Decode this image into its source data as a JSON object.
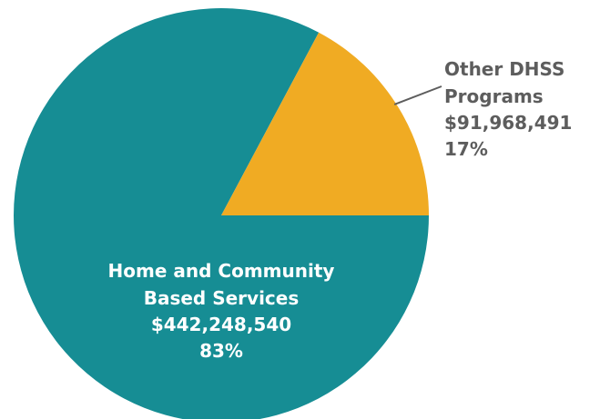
{
  "chart_data": {
    "type": "pie",
    "slices": [
      {
        "label_lines": [
          "Home and Community",
          "Based Services"
        ],
        "amount": "$442,248,540",
        "percent_label": "83%",
        "value": 442248540,
        "percent": 83,
        "color": "#168d94",
        "label_color": "#ffffff"
      },
      {
        "label_lines": [
          "Other DHSS",
          "Programs"
        ],
        "amount": "$91,968,491",
        "percent_label": "17%",
        "value": 91968491,
        "percent": 17,
        "color": "#f0ab23",
        "label_color": "#5d5d5d"
      }
    ],
    "legend": "none",
    "leader_line_color": "#5d5d5d"
  }
}
